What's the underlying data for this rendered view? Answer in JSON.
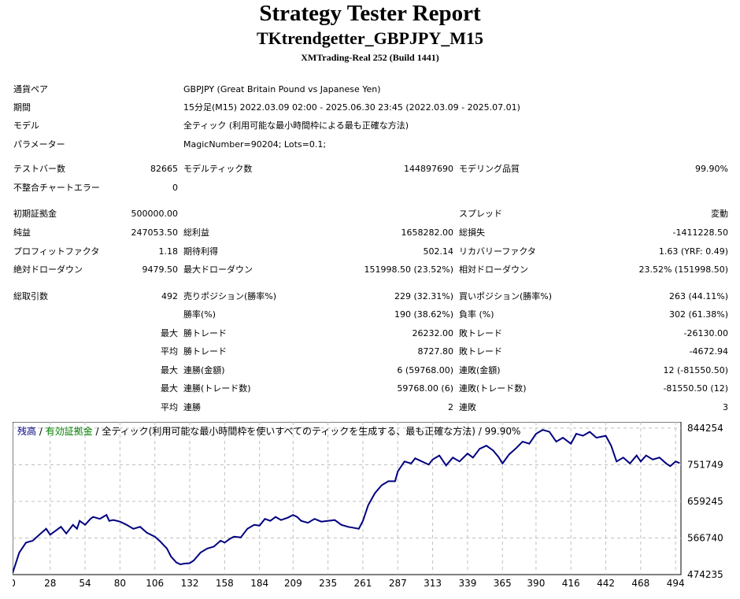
{
  "header": {
    "title": "Strategy Tester Report",
    "subtitle": "TKtrendgetter_GBPJPY_M15",
    "server": "XMTrading-Real 252 (Build 1441)"
  },
  "info": {
    "pair_label": "通貨ペア",
    "pair_value": "GBPJPY (Great Britain Pound vs Japanese Yen)",
    "period_label": "期間",
    "period_value": "15分足(M15) 2022.03.09 02:00 - 2025.06.30 23:45 (2022.03.09 - 2025.07.01)",
    "model_label": "モデル",
    "model_value": "全ティック (利用可能な最小時間枠による最も正確な方法)",
    "params_label": "パラメーター",
    "params_value": "MagicNumber=90204; Lots=0.1;"
  },
  "stats": {
    "bars_label": "テストバー数",
    "bars_value": "82665",
    "ticks_label": "モデルティック数",
    "ticks_value": "144897690",
    "quality_label": "モデリング品質",
    "quality_value": "99.90%",
    "errors_label": "不整合チャートエラー",
    "errors_value": "0",
    "deposit_label": "初期証拠金",
    "deposit_value": "500000.00",
    "spread_label": "スプレッド",
    "spread_value": "変動",
    "net_label": "純益",
    "net_value": "247053.50",
    "gross_profit_label": "総利益",
    "gross_profit_value": "1658282.00",
    "gross_loss_label": "総損失",
    "gross_loss_value": "-1411228.50",
    "pf_label": "プロフィットファクタ",
    "pf_value": "1.18",
    "expected_label": "期待利得",
    "expected_value": "502.14",
    "recovery_label": "リカバリーファクタ",
    "recovery_value": "1.63 (YRF: 0.49)",
    "abs_dd_label": "絶対ドローダウン",
    "abs_dd_value": "9479.50",
    "max_dd_label": "最大ドローダウン",
    "max_dd_value": "151998.50 (23.52%)",
    "rel_dd_label": "相対ドローダウン",
    "rel_dd_value": "23.52% (151998.50)",
    "trades_label": "総取引数",
    "trades_value": "492",
    "short_label": "売りポジション(勝率%)",
    "short_value": "229 (32.31%)",
    "long_label": "買いポジション(勝率%)",
    "long_value": "263 (44.11%)",
    "win_pct_label": "勝率(%)",
    "win_pct_value": "190 (38.62%)",
    "loss_pct_label": "負率 (%)",
    "loss_pct_value": "302 (61.38%)",
    "max_word": "最大",
    "avg_word": "平均",
    "largest_win_label": "勝トレード",
    "largest_win_value": "26232.00",
    "largest_loss_label": "敗トレード",
    "largest_loss_value": "-26130.00",
    "avg_win_label": "勝トレード",
    "avg_win_value": "8727.80",
    "avg_loss_label": "敗トレード",
    "avg_loss_value": "-4672.94",
    "max_consec_win_label": "連勝(金額)",
    "max_consec_win_value": "6 (59768.00)",
    "max_consec_loss_label": "連敗(金額)",
    "max_consec_loss_value": "12 (-81550.50)",
    "max_consec_profit_label": "連勝(トレード数)",
    "max_consec_profit_value": "59768.00 (6)",
    "max_consec_lossamt_label": "連敗(トレード数)",
    "max_consec_lossamt_value": "-81550.50 (12)",
    "avg_consec_win_label": "連勝",
    "avg_consec_win_value": "2",
    "avg_consec_loss_label": "連敗",
    "avg_consec_loss_value": "3"
  },
  "legend": {
    "balance": "残高",
    "sep1": " / ",
    "equity": "有効証拠金",
    "sep2": " / ",
    "desc": "全ティック(利用可能な最小時間枠を使いすべてのティックを生成する、最も正確な方法) / 99.90%",
    "balance_color": "#000080",
    "equity_color": "#008000"
  },
  "chart_data": {
    "type": "line",
    "series": [
      {
        "name": "残高",
        "color": "#000080",
        "x": [
          0,
          5,
          10,
          15,
          20,
          25,
          28,
          32,
          36,
          40,
          45,
          48,
          50,
          54,
          58,
          60,
          65,
          70,
          72,
          75,
          80,
          85,
          90,
          95,
          100,
          106,
          110,
          115,
          118,
          122,
          125,
          128,
          132,
          135,
          140,
          145,
          150,
          155,
          158,
          162,
          165,
          170,
          175,
          180,
          184,
          188,
          192,
          196,
          200,
          205,
          209,
          212,
          215,
          220,
          225,
          230,
          235,
          240,
          245,
          250,
          255,
          258,
          261,
          265,
          270,
          275,
          280,
          285,
          287,
          292,
          297,
          300,
          305,
          310,
          313,
          318,
          323,
          328,
          333,
          339,
          343,
          348,
          353,
          358,
          362,
          365,
          370,
          375,
          380,
          385,
          390,
          395,
          400,
          405,
          410,
          416,
          420,
          425,
          430,
          435,
          442,
          446,
          450,
          455,
          460,
          465,
          468,
          472,
          477,
          482,
          487,
          490,
          494,
          497
        ],
        "y": [
          478000,
          530000,
          555000,
          560000,
          575000,
          590000,
          575000,
          585000,
          595000,
          578000,
          600000,
          590000,
          610000,
          600000,
          615000,
          620000,
          615000,
          625000,
          610000,
          612000,
          608000,
          600000,
          590000,
          595000,
          580000,
          570000,
          558000,
          540000,
          520000,
          505000,
          500000,
          502000,
          503000,
          510000,
          530000,
          540000,
          545000,
          560000,
          555000,
          565000,
          570000,
          568000,
          590000,
          600000,
          598000,
          615000,
          610000,
          620000,
          612000,
          618000,
          625000,
          620000,
          610000,
          605000,
          615000,
          608000,
          610000,
          612000,
          600000,
          595000,
          592000,
          590000,
          610000,
          650000,
          680000,
          700000,
          710000,
          710000,
          735000,
          760000,
          755000,
          768000,
          760000,
          752000,
          765000,
          775000,
          750000,
          770000,
          760000,
          780000,
          770000,
          792000,
          800000,
          788000,
          772000,
          755000,
          778000,
          793000,
          810000,
          805000,
          830000,
          840000,
          835000,
          810000,
          820000,
          805000,
          830000,
          825000,
          835000,
          820000,
          825000,
          800000,
          760000,
          770000,
          755000,
          775000,
          760000,
          775000,
          765000,
          770000,
          755000,
          748000,
          760000,
          756000
        ]
      }
    ],
    "xticks": [
      "0",
      "28",
      "54",
      "80",
      "106",
      "132",
      "158",
      "184",
      "209",
      "235",
      "261",
      "287",
      "313",
      "339",
      "365",
      "390",
      "416",
      "442",
      "468",
      "494"
    ],
    "yticks": [
      "844254",
      "751749",
      "659245",
      "566740",
      "474235"
    ],
    "xlim": [
      0,
      498
    ],
    "ylim": [
      474235,
      860000
    ],
    "grid": true
  }
}
